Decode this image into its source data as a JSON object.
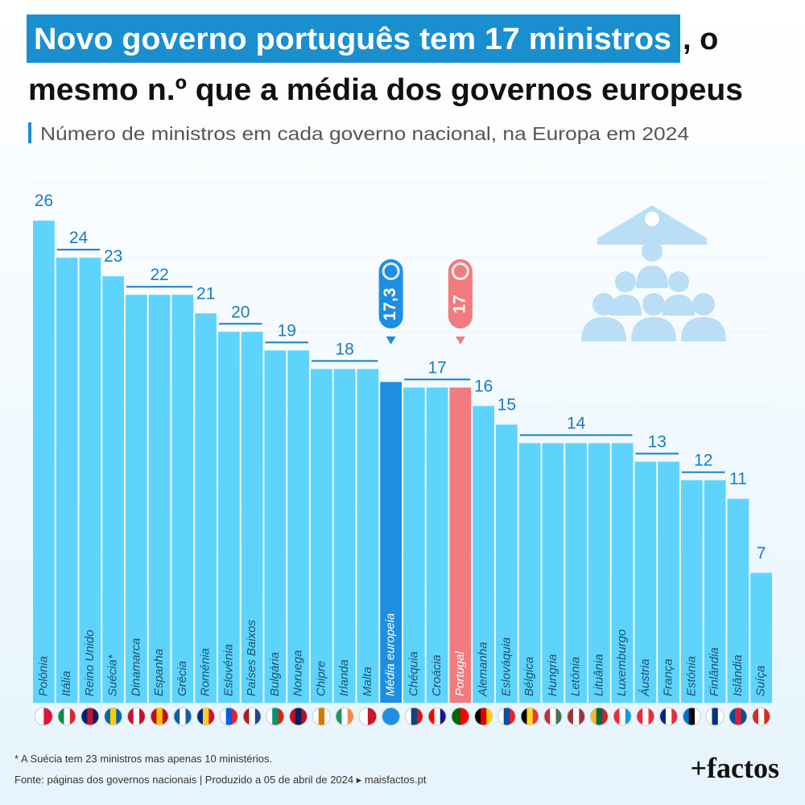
{
  "chart_data": {
    "type": "bar",
    "title_highlight": "Novo governo português tem 17 ministros",
    "title_rest": ", o",
    "title_line2": "mesmo n.º que a média dos governos europeus",
    "subtitle": "Número de ministros em cada governo nacional, na Europa em 2024",
    "categories": [
      "Polónia",
      "Itália",
      "Reino Unido",
      "Suécia*",
      "Dinamarca",
      "Espanha",
      "Grécia",
      "Roménia",
      "Eslovénia",
      "Países Baixos",
      "Bulgária",
      "Noruega",
      "Chipre",
      "Irlanda",
      "Malta",
      "Média europeia",
      "Chéquia",
      "Croácia",
      "Portugal",
      "Alemanha",
      "Eslováquia",
      "Bélgica",
      "Hungria",
      "Letónia",
      "Lituânia",
      "Luxemburgo",
      "Áustria",
      "França",
      "Estónia",
      "Finlândia",
      "Islândia",
      "Suíça"
    ],
    "values": [
      26,
      24,
      24,
      23,
      22,
      22,
      22,
      21,
      20,
      20,
      19,
      19,
      18,
      18,
      18,
      17.3,
      17,
      17,
      17,
      16,
      15,
      14,
      14,
      14,
      14,
      14,
      13,
      13,
      12,
      12,
      11,
      7
    ],
    "value_labels": [
      null,
      null,
      null,
      null,
      null,
      null,
      null,
      null,
      null,
      null,
      null,
      null,
      null,
      null,
      null,
      "17,3",
      null,
      null,
      "17",
      null,
      null,
      null,
      null,
      null,
      null,
      null,
      null,
      null,
      null,
      null,
      null,
      null
    ],
    "colors": [
      "#5ed4fc",
      "#5ed4fc",
      "#5ed4fc",
      "#5ed4fc",
      "#5ed4fc",
      "#5ed4fc",
      "#5ed4fc",
      "#5ed4fc",
      "#5ed4fc",
      "#5ed4fc",
      "#5ed4fc",
      "#5ed4fc",
      "#5ed4fc",
      "#5ed4fc",
      "#5ed4fc",
      "#1e8fe0",
      "#5ed4fc",
      "#5ed4fc",
      "#f27b80",
      "#5ed4fc",
      "#5ed4fc",
      "#5ed4fc",
      "#5ed4fc",
      "#5ed4fc",
      "#5ed4fc",
      "#5ed4fc",
      "#5ed4fc",
      "#5ed4fc",
      "#5ed4fc",
      "#5ed4fc",
      "#5ed4fc",
      "#5ed4fc"
    ],
    "ylim": [
      0,
      28
    ],
    "yticks": [
      0,
      4,
      8,
      12,
      16,
      20,
      24,
      28
    ],
    "grid": true,
    "footnote": "* A Suécia tem 23 ministros mas apenas 10 ministérios.",
    "source": "Fonte: páginas dos governos nacionais  |  Produzido a 05 de abril de 2024 ▸ maisfactos.pt",
    "logo": "+factos"
  }
}
